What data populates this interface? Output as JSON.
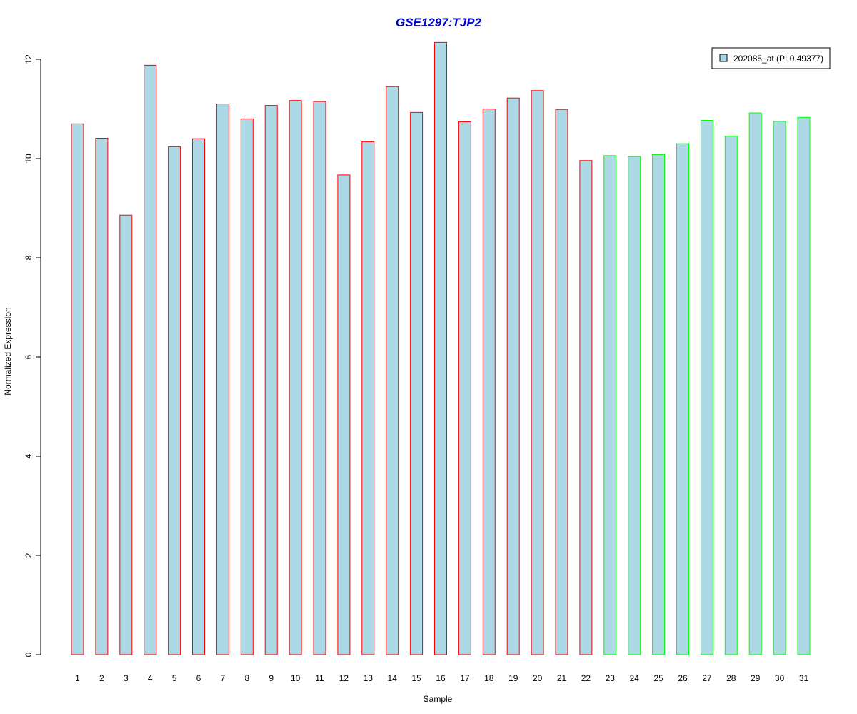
{
  "chart_data": {
    "type": "bar",
    "title": "GSE1297:TJP2",
    "xlabel": "Sample",
    "ylabel": "Normalized Expression",
    "ylim": [
      0,
      12.4
    ],
    "yticks": [
      0,
      2,
      4,
      6,
      8,
      10,
      12
    ],
    "grid": false,
    "legend_position": "top-right",
    "categories": [
      "1",
      "2",
      "3",
      "4",
      "5",
      "6",
      "7",
      "8",
      "9",
      "10",
      "11",
      "12",
      "13",
      "14",
      "15",
      "16",
      "17",
      "18",
      "19",
      "20",
      "21",
      "22",
      "23",
      "24",
      "25",
      "26",
      "27",
      "28",
      "29",
      "30",
      "31"
    ],
    "series": [
      {
        "name": "202085_at (P: 0.49377)",
        "values": [
          10.7,
          10.41,
          8.86,
          11.88,
          10.24,
          10.4,
          11.1,
          10.8,
          11.07,
          11.17,
          11.15,
          9.67,
          10.34,
          11.45,
          10.93,
          12.34,
          10.74,
          11.0,
          11.22,
          11.37,
          10.99,
          9.96,
          10.06,
          10.04,
          10.08,
          10.3,
          10.77,
          10.45,
          10.92,
          10.75,
          10.83
        ]
      }
    ],
    "groups": [
      "red",
      "red",
      "red",
      "red",
      "red",
      "red",
      "red",
      "red",
      "red",
      "red",
      "red",
      "red",
      "red",
      "red",
      "red",
      "red",
      "red",
      "red",
      "red",
      "red",
      "red",
      "red",
      "green",
      "green",
      "green",
      "green",
      "green",
      "green",
      "green",
      "green",
      "green"
    ],
    "colors": {
      "bar_fill": "#add8e6",
      "group_red": "#ff0000",
      "group_green": "#00ff00",
      "title": "#0000cd",
      "axis": "#000000"
    }
  }
}
